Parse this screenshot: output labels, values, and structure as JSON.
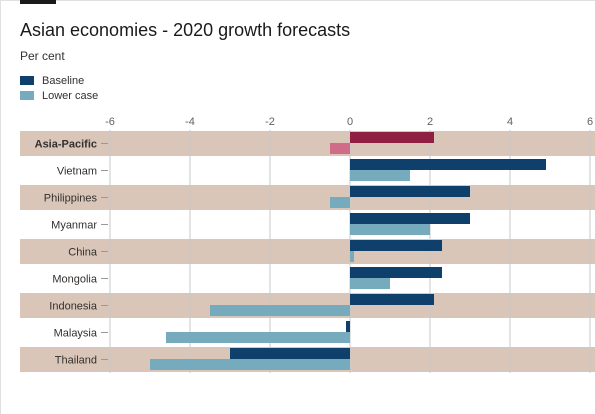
{
  "title": "Asian economies - 2020 growth forecasts",
  "subtitle": "Per cent",
  "legend": [
    {
      "name": "Baseline",
      "color": "#0f3f6b"
    },
    {
      "name": "Lower case",
      "color": "#76abbd"
    }
  ],
  "colors": {
    "band": "#d9c6b8",
    "highlight_baseline": "#8f1f43",
    "highlight_lower": "#d06c8a",
    "grid": "#c8c8c8"
  },
  "chart_data": {
    "type": "bar",
    "orientation": "horizontal",
    "title": "Asian economies - 2020 growth forecasts",
    "ylabel": "Per cent",
    "xlim": [
      -6,
      6
    ],
    "xticks": [
      -6,
      -4,
      -2,
      0,
      2,
      4,
      6
    ],
    "grid": true,
    "legend_position": "top-left",
    "categories": [
      "Asia-Pacific",
      "Vietnam",
      "Philippines",
      "Myanmar",
      "China",
      "Mongolia",
      "Indonesia",
      "Malaysia",
      "Thailand"
    ],
    "highlight_category": "Asia-Pacific",
    "series": [
      {
        "name": "Baseline",
        "values": [
          2.1,
          4.9,
          3.0,
          3.0,
          2.3,
          2.3,
          2.1,
          -0.1,
          -3.0
        ]
      },
      {
        "name": "Lower case",
        "values": [
          -0.5,
          1.5,
          -0.5,
          2.0,
          0.1,
          1.0,
          -3.5,
          -4.6,
          -5.0
        ]
      }
    ]
  }
}
